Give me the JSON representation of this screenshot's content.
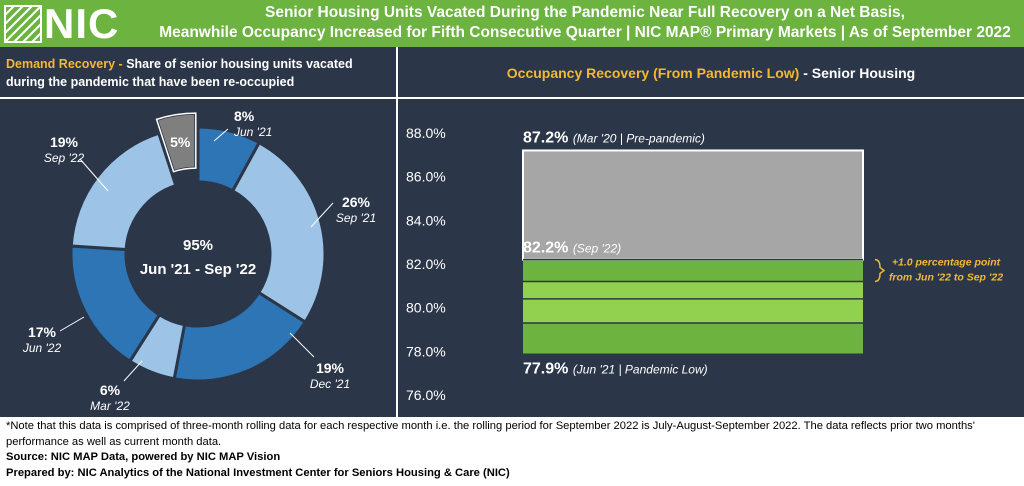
{
  "header": {
    "logo_text": "NIC",
    "title_line1": "Senior Housing Units Vacated During the Pandemic Near Full Recovery on a Net Basis,",
    "title_line2": "Meanwhile Occupancy Increased for Fifth Consecutive Quarter | NIC MAP® Primary Markets | As of September 2022"
  },
  "left_panel": {
    "heading_accent": "Demand Recovery -",
    "heading_text": " Share of senior housing units vacated during the pandemic that have been re-occupied"
  },
  "right_panel": {
    "heading_accent": "Occupancy Recovery (From Pandemic Low)",
    "heading_text": " - Senior Housing"
  },
  "colors": {
    "header_green": "#6cb33f",
    "panel_navy": "#2b3648",
    "accent_gold": "#f2b933",
    "slice_dark_blue": "#2e75b6",
    "slice_light_blue": "#9dc3e6",
    "slice_gray": "#7f7f7f",
    "bar_gray": "#a6a6a6",
    "bar_green_dark": "#6cb33f",
    "bar_green_light": "#92d050"
  },
  "chart_data": [
    {
      "type": "pie",
      "variant": "donut",
      "center_value": "95%",
      "center_label": "Jun '21 - Sep '22",
      "slices": [
        {
          "value": 8,
          "pct_label": "8%",
          "period": "Jun '21",
          "color": "#2e75b6"
        },
        {
          "value": 26,
          "pct_label": "26%",
          "period": "Sep '21",
          "color": "#9dc3e6"
        },
        {
          "value": 19,
          "pct_label": "19%",
          "period": "Dec '21",
          "color": "#2e75b6"
        },
        {
          "value": 6,
          "pct_label": "6%",
          "period": "Mar '22",
          "color": "#9dc3e6"
        },
        {
          "value": 17,
          "pct_label": "17%",
          "period": "Jun '22",
          "color": "#2e75b6"
        },
        {
          "value": 19,
          "pct_label": "19%",
          "period": "Sep '22",
          "color": "#9dc3e6"
        },
        {
          "value": 5,
          "pct_label": "5%",
          "period": "",
          "color": "#7f7f7f",
          "exploded": true
        }
      ]
    },
    {
      "type": "bar",
      "variant": "stacked-range",
      "ylim": [
        76.0,
        88.0
      ],
      "yticks": [
        88.0,
        86.0,
        84.0,
        82.0,
        80.0,
        78.0,
        76.0
      ],
      "ytick_labels": [
        "88.0%",
        "86.0%",
        "84.0%",
        "82.0%",
        "80.0%",
        "78.0%",
        "76.0%"
      ],
      "segments": [
        {
          "from": 82.2,
          "to": 87.2,
          "color": "#a6a6a6"
        },
        {
          "from": 81.2,
          "to": 82.2,
          "color": "#6cb33f"
        },
        {
          "from": 80.4,
          "to": 81.2,
          "color": "#92d050"
        },
        {
          "from": 79.3,
          "to": 80.4,
          "color": "#92d050"
        },
        {
          "from": 77.9,
          "to": 79.3,
          "color": "#6cb33f"
        }
      ],
      "annotations": {
        "top": {
          "value": 87.2,
          "value_label": "87.2%",
          "note": "(Mar '20 | Pre-pandemic)"
        },
        "current": {
          "value": 82.2,
          "value_label": "82.2%",
          "note": "(Sep '22)"
        },
        "low": {
          "value": 77.9,
          "value_label": "77.9%",
          "note": "(Jun '21 | Pandemic Low)"
        },
        "change_line1": "+1.0 percentage point",
        "change_line2": "from Jun '22 to Sep '22",
        "change_from": 81.2,
        "change_to": 82.2
      }
    }
  ],
  "footer": {
    "note": "*Note that this data is comprised of three-month rolling data for each respective month i.e. the rolling period for September 2022 is July-August-September 2022. The data reflects prior two months' performance as well as current month data.",
    "source": "Source: NIC MAP Data, powered by NIC MAP Vision",
    "prepared": "Prepared by: NIC Analytics of the National Investment Center for Seniors Housing & Care (NIC)"
  }
}
